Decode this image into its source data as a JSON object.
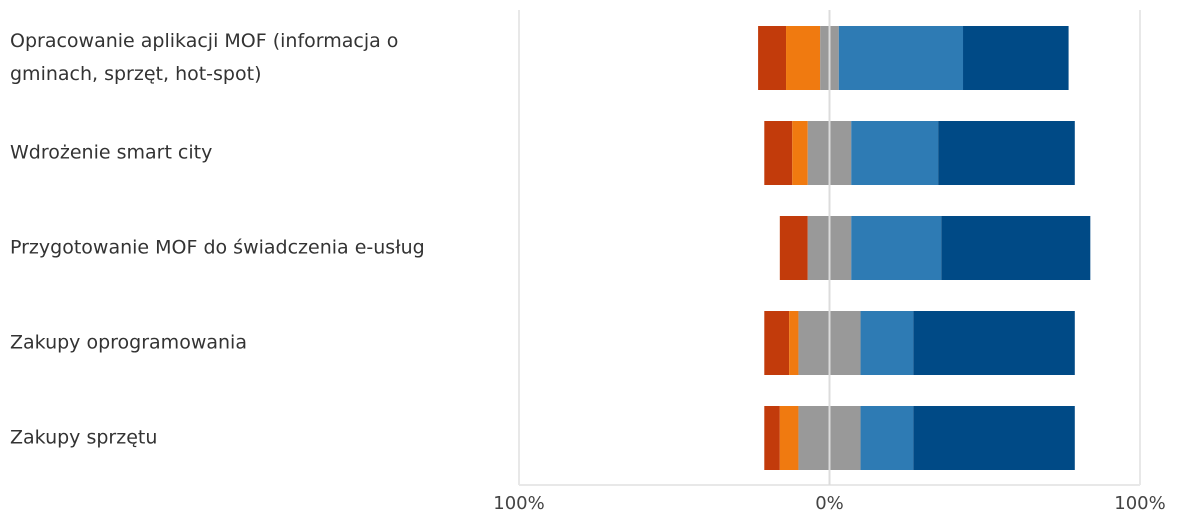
{
  "chart_data": {
    "type": "bar",
    "orientation": "horizontal",
    "stacking": "diverging",
    "categories": [
      "Opracowanie aplikacji MOF (informacja o gminach, sprzęt, hot-spot)",
      "Wdrożenie smart city",
      "Przygotowanie MOF do świadczenia e-usług",
      "Zakupy oprogramowania",
      "Zakupy sprzętu"
    ],
    "series": [
      {
        "color": "#c23b0b",
        "values": [
          9,
          9,
          9,
          8,
          5
        ]
      },
      {
        "color": "#f07a10",
        "values": [
          11,
          5,
          0,
          3,
          6
        ]
      },
      {
        "color": "#999999",
        "values": [
          6,
          14,
          14,
          20,
          20
        ]
      },
      {
        "color": "#2e7bb4",
        "values": [
          40,
          28,
          29,
          17,
          17
        ]
      },
      {
        "color": "#004a86",
        "values": [
          34,
          44,
          48,
          52,
          52
        ]
      }
    ],
    "xlim": [
      -100,
      100
    ],
    "xticks": [
      {
        "value": -100,
        "label": "100%"
      },
      {
        "value": 0,
        "label": "0%"
      },
      {
        "value": 100,
        "label": "100%"
      }
    ],
    "grid": true
  }
}
